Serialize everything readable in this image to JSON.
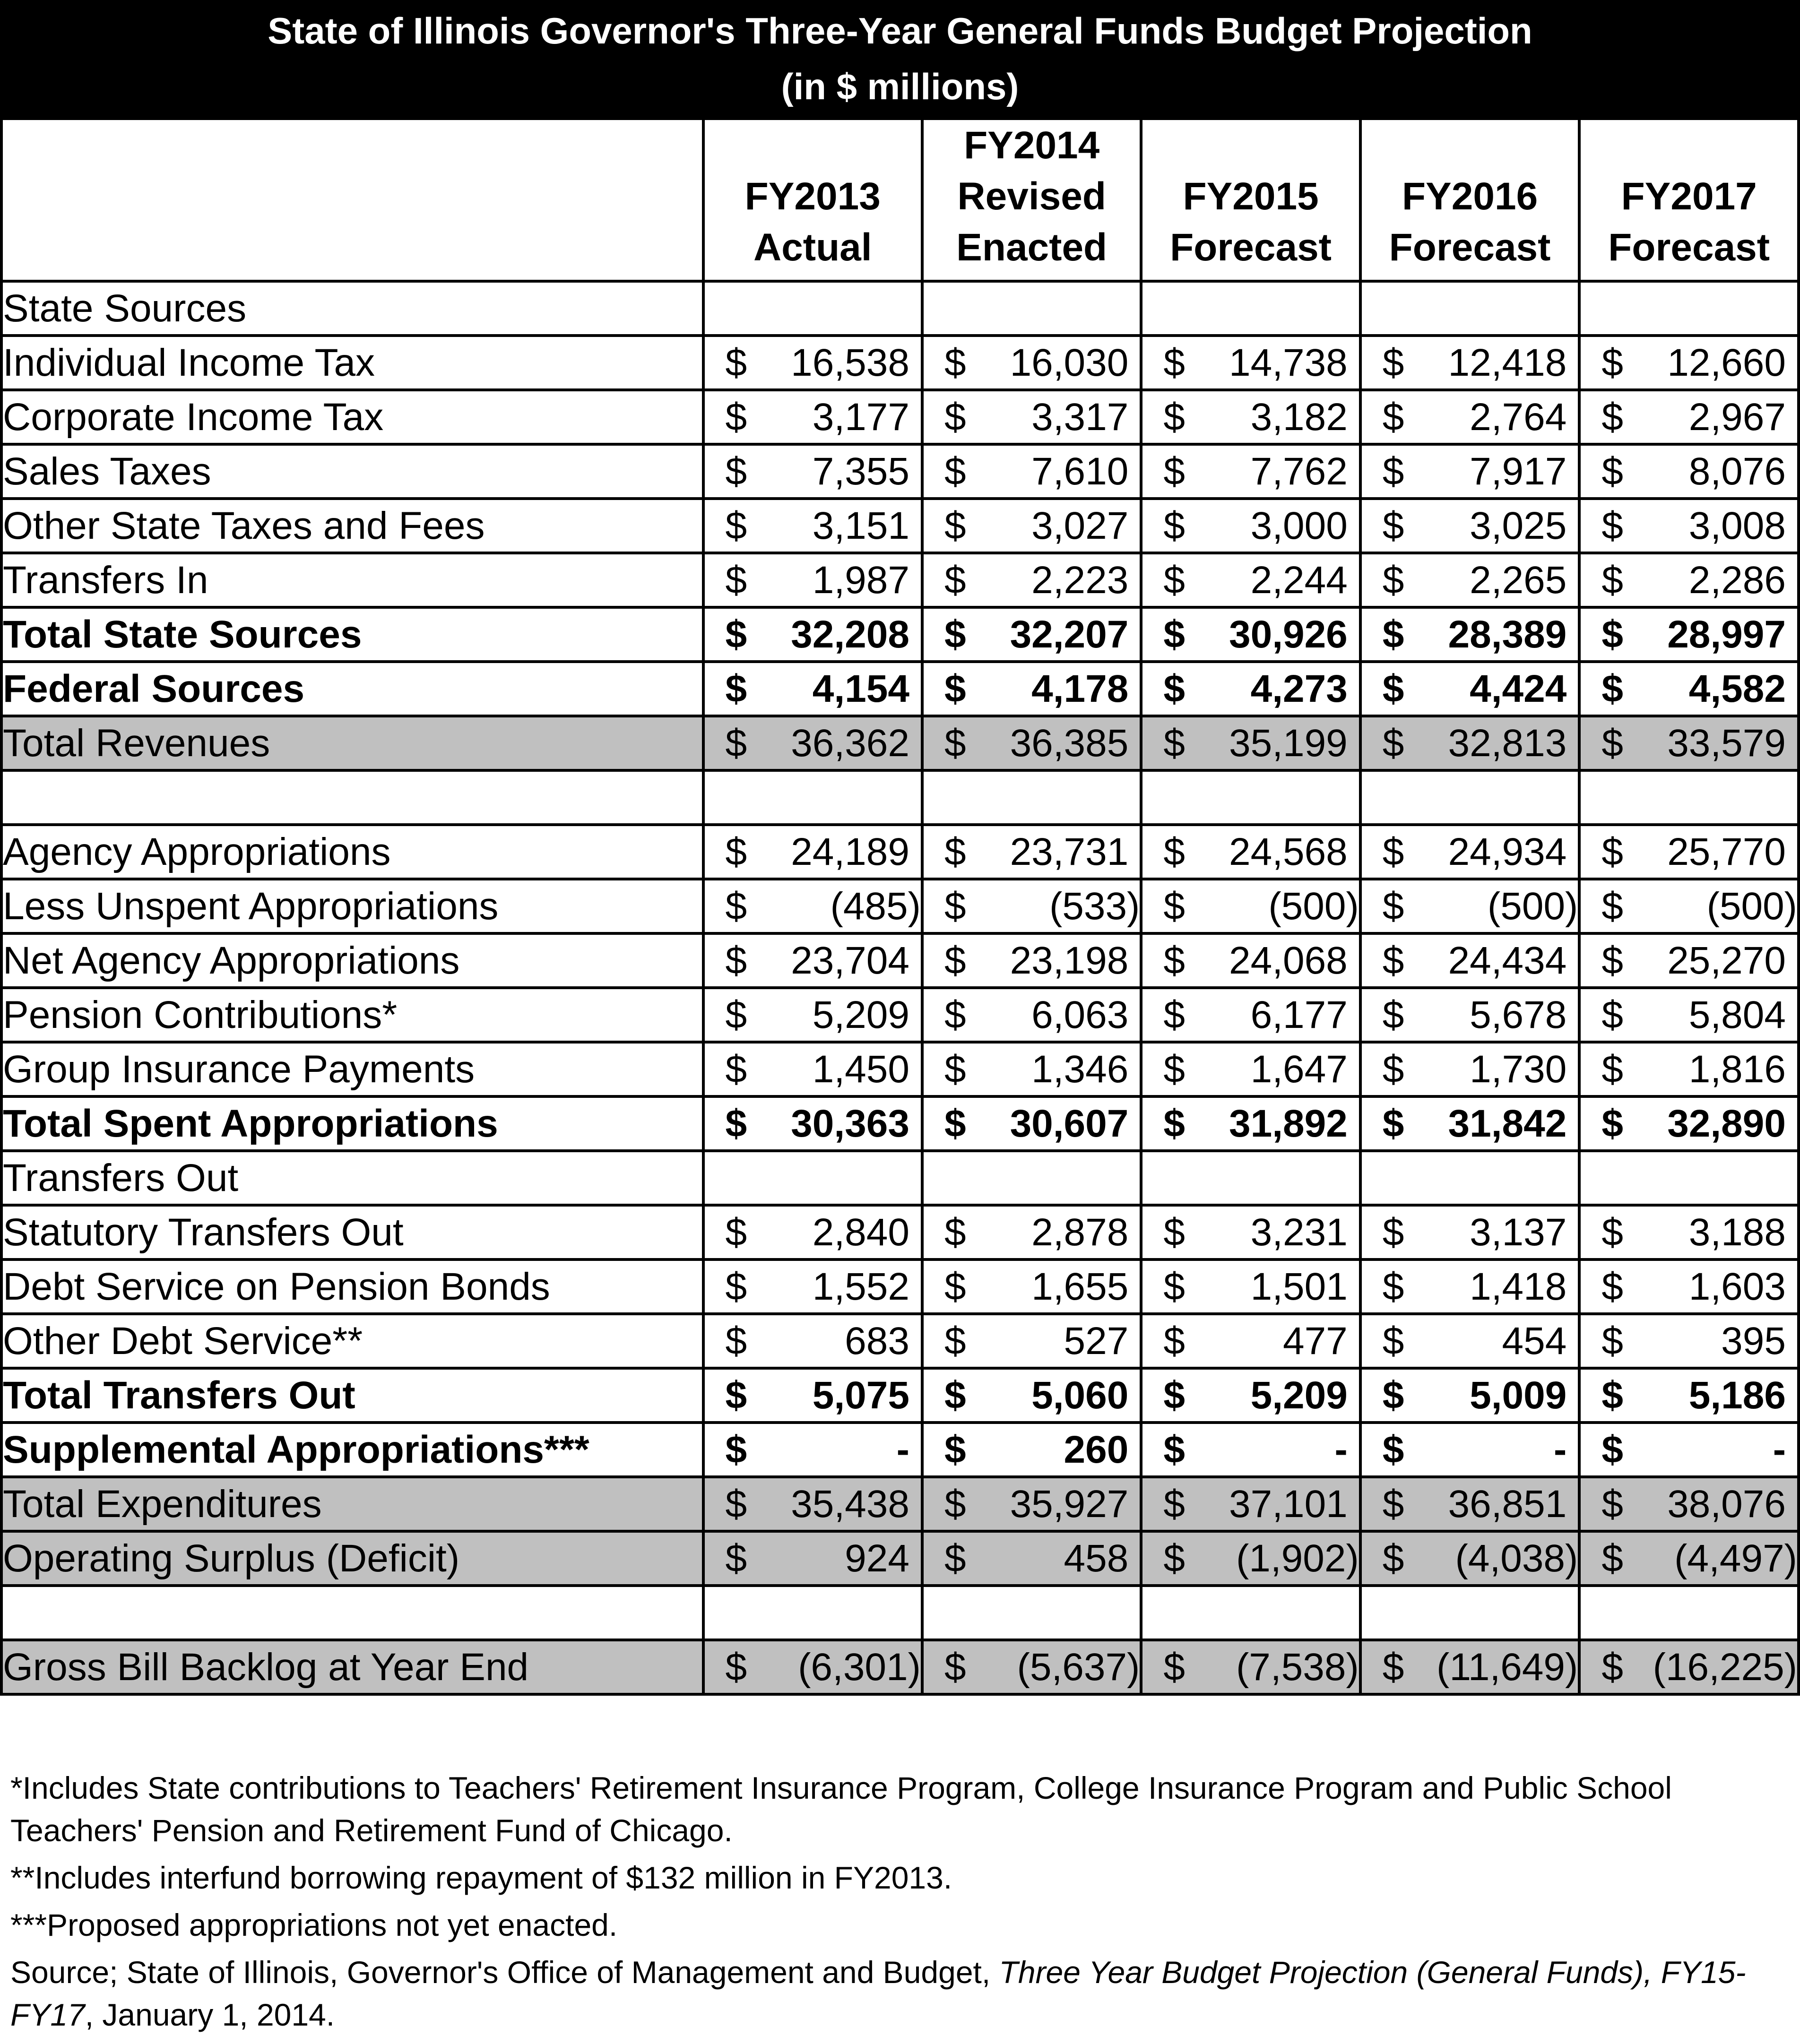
{
  "title": "State of Illinois Governor's Three-Year General Funds Budget Projection",
  "subtitle": "(in $ millions)",
  "columns": [
    [
      "FY2013",
      "Actual"
    ],
    [
      "FY2014",
      "Revised",
      "Enacted"
    ],
    [
      "FY2015",
      "Forecast"
    ],
    [
      "FY2016",
      "Forecast"
    ],
    [
      "FY2017",
      "Forecast"
    ]
  ],
  "currency_symbol": "$",
  "rows": [
    {
      "label": "State Sources",
      "style": "section",
      "values": null
    },
    {
      "label": "Individual Income Tax",
      "style": "indent",
      "values": [
        "16,538",
        "16,030",
        "14,738",
        "12,418",
        "12,660"
      ]
    },
    {
      "label": "Corporate Income Tax",
      "style": "indent",
      "values": [
        "3,177",
        "3,317",
        "3,182",
        "2,764",
        "2,967"
      ]
    },
    {
      "label": "Sales Taxes",
      "style": "indent",
      "values": [
        "7,355",
        "7,610",
        "7,762",
        "7,917",
        "8,076"
      ]
    },
    {
      "label": "Other State Taxes and Fees",
      "style": "indent",
      "values": [
        "3,151",
        "3,027",
        "3,000",
        "3,025",
        "3,008"
      ]
    },
    {
      "label": "Transfers In",
      "style": "indent",
      "values": [
        "1,987",
        "2,223",
        "2,244",
        "2,265",
        "2,286"
      ]
    },
    {
      "label": "Total State Sources",
      "style": "bold",
      "values": [
        "32,208",
        "32,207",
        "30,926",
        "28,389",
        "28,997"
      ]
    },
    {
      "label": "Federal Sources",
      "style": "bold",
      "values": [
        "4,154",
        "4,178",
        "4,273",
        "4,424",
        "4,582"
      ]
    },
    {
      "label": "Total Revenues",
      "style": "shade",
      "values": [
        "36,362",
        "36,385",
        "35,199",
        "32,813",
        "33,579"
      ]
    },
    {
      "label": "",
      "style": "gap",
      "values": null
    },
    {
      "label": "Agency Appropriations",
      "style": "normal",
      "values": [
        "24,189",
        "23,731",
        "24,568",
        "24,934",
        "25,770"
      ]
    },
    {
      "label": "Less Unspent Appropriations",
      "style": "indent",
      "values": [
        "(485)",
        "(533)",
        "(500)",
        "(500)",
        "(500)"
      ]
    },
    {
      "label": "Net Agency Appropriations",
      "style": "normal",
      "values": [
        "23,704",
        "23,198",
        "24,068",
        "24,434",
        "25,270"
      ]
    },
    {
      "label": "Pension Contributions*",
      "style": "normal",
      "values": [
        "5,209",
        "6,063",
        "6,177",
        "5,678",
        "5,804"
      ]
    },
    {
      "label": "Group Insurance Payments",
      "style": "normal",
      "values": [
        "1,450",
        "1,346",
        "1,647",
        "1,730",
        "1,816"
      ]
    },
    {
      "label": "Total Spent Appropriations",
      "style": "bold",
      "values": [
        "30,363",
        "30,607",
        "31,892",
        "31,842",
        "32,890"
      ]
    },
    {
      "label": "Transfers Out",
      "style": "section",
      "values": null
    },
    {
      "label": "Statutory Transfers Out",
      "style": "indent",
      "values": [
        "2,840",
        "2,878",
        "3,231",
        "3,137",
        "3,188"
      ]
    },
    {
      "label": "Debt Service on Pension Bonds",
      "style": "indent",
      "values": [
        "1,552",
        "1,655",
        "1,501",
        "1,418",
        "1,603"
      ]
    },
    {
      "label": "Other Debt Service**",
      "style": "indent",
      "values": [
        "683",
        "527",
        "477",
        "454",
        "395"
      ]
    },
    {
      "label": "Total Transfers Out",
      "style": "bold",
      "values": [
        "5,075",
        "5,060",
        "5,209",
        "5,009",
        "5,186"
      ]
    },
    {
      "label": "Supplemental Appropriations***",
      "style": "bold",
      "values": [
        "-",
        "260",
        "-",
        "-",
        "-"
      ]
    },
    {
      "label": "Total Expenditures",
      "style": "shade",
      "values": [
        "35,438",
        "35,927",
        "37,101",
        "36,851",
        "38,076"
      ]
    },
    {
      "label": "Operating Surplus (Deficit)",
      "style": "shade",
      "values": [
        "924",
        "458",
        "(1,902)",
        "(4,038)",
        "(4,497)"
      ]
    },
    {
      "label": "",
      "style": "gap",
      "values": null
    },
    {
      "label": "Gross Bill Backlog at Year End",
      "style": "shade",
      "values": [
        "(6,301)",
        "(5,637)",
        "(7,538)",
        "(11,649)",
        "(16,225)"
      ]
    }
  ],
  "footnotes": {
    "note1": "*Includes State contributions to Teachers' Retirement Insurance Program, College Insurance Program and Public School Teachers' Pension and Retirement Fund of Chicago.",
    "note2": "**Includes interfund borrowing repayment of $132 million in FY2013.",
    "note3": "***Proposed appropriations not yet enacted.",
    "source_prefix": "Source; State of Illinois, Governor's Office of Management and Budget, ",
    "source_title": "Three Year Budget Projection (General Funds), FY15-FY17",
    "source_suffix": ", January 1, 2014."
  }
}
